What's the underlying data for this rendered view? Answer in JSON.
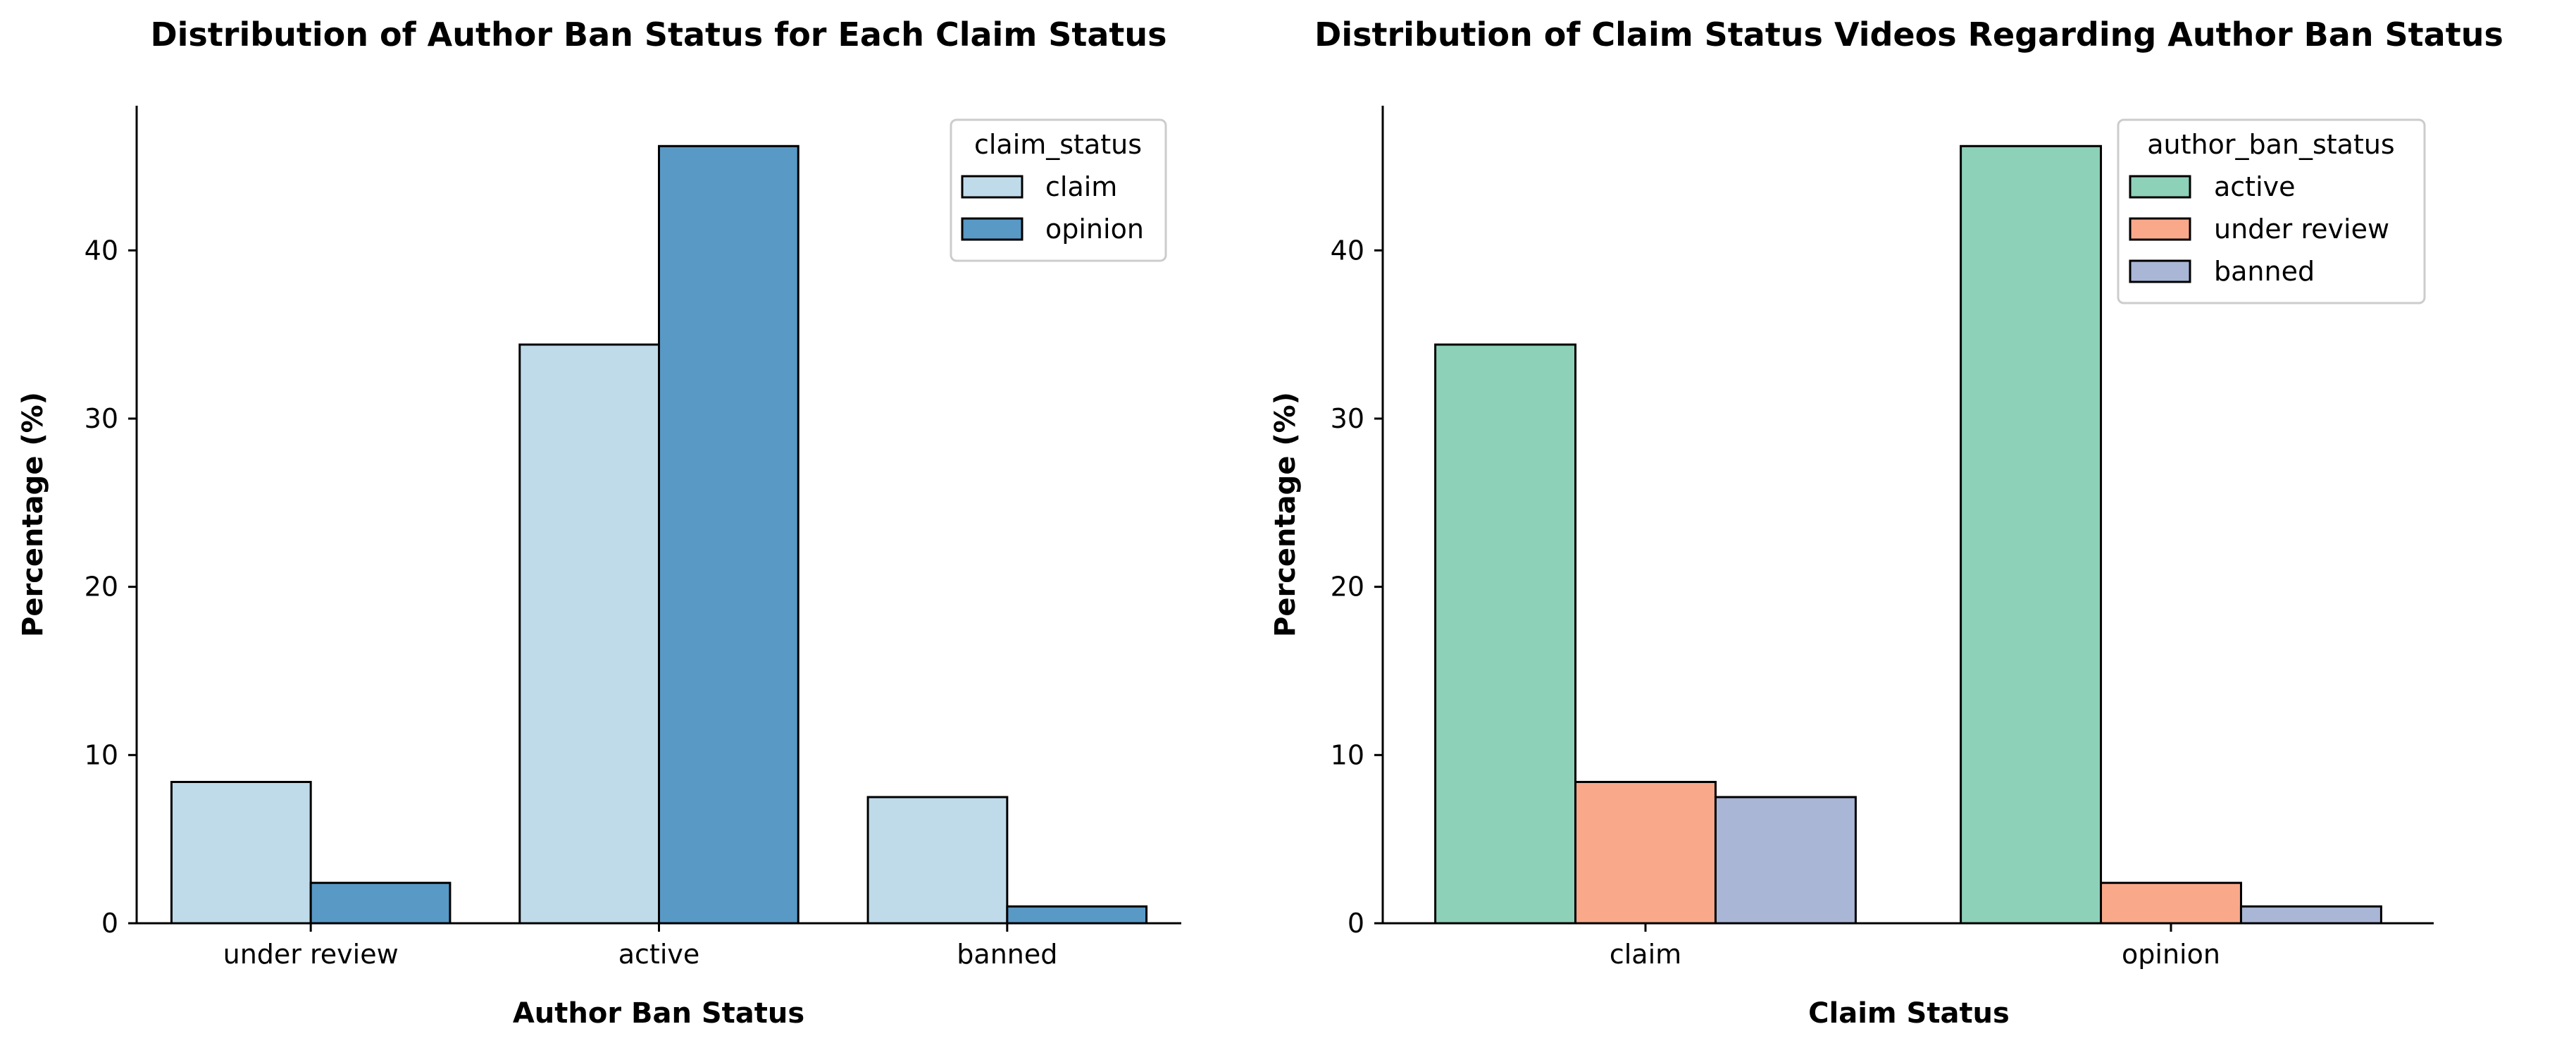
{
  "chart_data": [
    {
      "type": "bar",
      "title": "Distribution of Author Ban Status for Each Claim Status",
      "xlabel": "Author Ban Status",
      "ylabel": "Percentage (%)",
      "categories": [
        "under review",
        "active",
        "banned"
      ],
      "legend_title": "claim_status",
      "legend_position": "top-right",
      "ylim": [
        0,
        48.6
      ],
      "yticks": [
        0,
        10,
        20,
        30,
        40
      ],
      "series": [
        {
          "name": "claim",
          "color": "#bfdbea",
          "values": [
            8.4,
            34.4,
            7.5
          ]
        },
        {
          "name": "opinion",
          "color": "#5899c6",
          "values": [
            2.4,
            46.2,
            1.0
          ]
        }
      ]
    },
    {
      "type": "bar",
      "title": "Distribution of Claim Status Videos Regarding Author Ban Status",
      "xlabel": "Claim Status",
      "ylabel": "Percentage (%)",
      "categories": [
        "claim",
        "opinion"
      ],
      "legend_title": "author_ban_status",
      "legend_position": "top-right",
      "ylim": [
        0,
        48.6
      ],
      "yticks": [
        0,
        10,
        20,
        30,
        40
      ],
      "series": [
        {
          "name": "active",
          "color": "#8dd1b9",
          "values": [
            34.4,
            46.2
          ]
        },
        {
          "name": "under review",
          "color": "#f9a98a",
          "values": [
            8.4,
            2.4
          ]
        },
        {
          "name": "banned",
          "color": "#a9b6d6",
          "values": [
            7.5,
            1.0
          ]
        }
      ]
    }
  ]
}
